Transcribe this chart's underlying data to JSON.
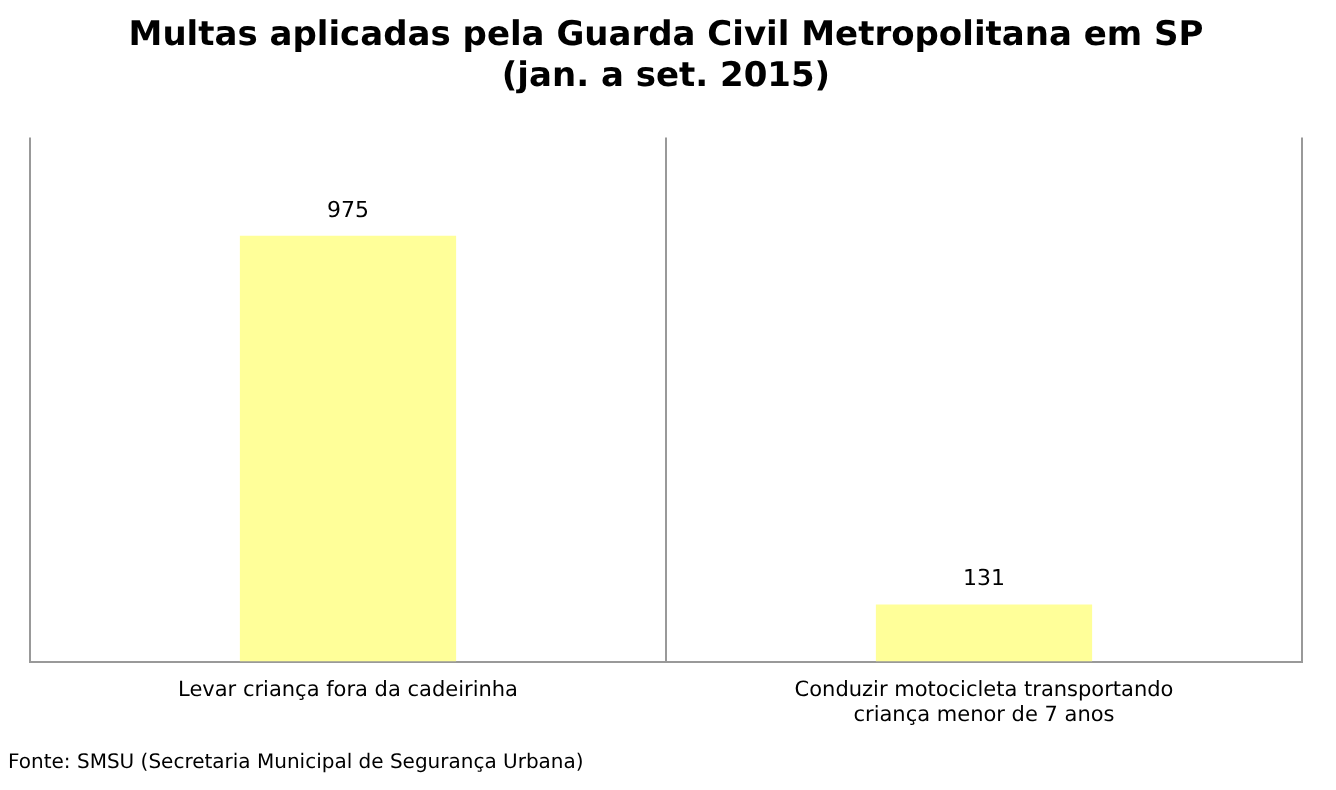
{
  "chart_data": {
    "type": "bar",
    "title": [
      "Multas aplicadas pela Guarda Civil Metropolitana em SP",
      "(jan. a set. 2015)"
    ],
    "categories": [
      "Levar criança fora da cadeirinha",
      "Conduzir motocicleta transportando criança menor de 7 anos"
    ],
    "values": [
      975,
      131
    ],
    "color": "#ffff99",
    "ylim": [
      0,
      1200
    ],
    "grid": "x",
    "data_labels": true,
    "legend": false,
    "annotations": [
      "Fonte: SMSU (Secretaria Municipal de Segurança Urbana)"
    ]
  }
}
